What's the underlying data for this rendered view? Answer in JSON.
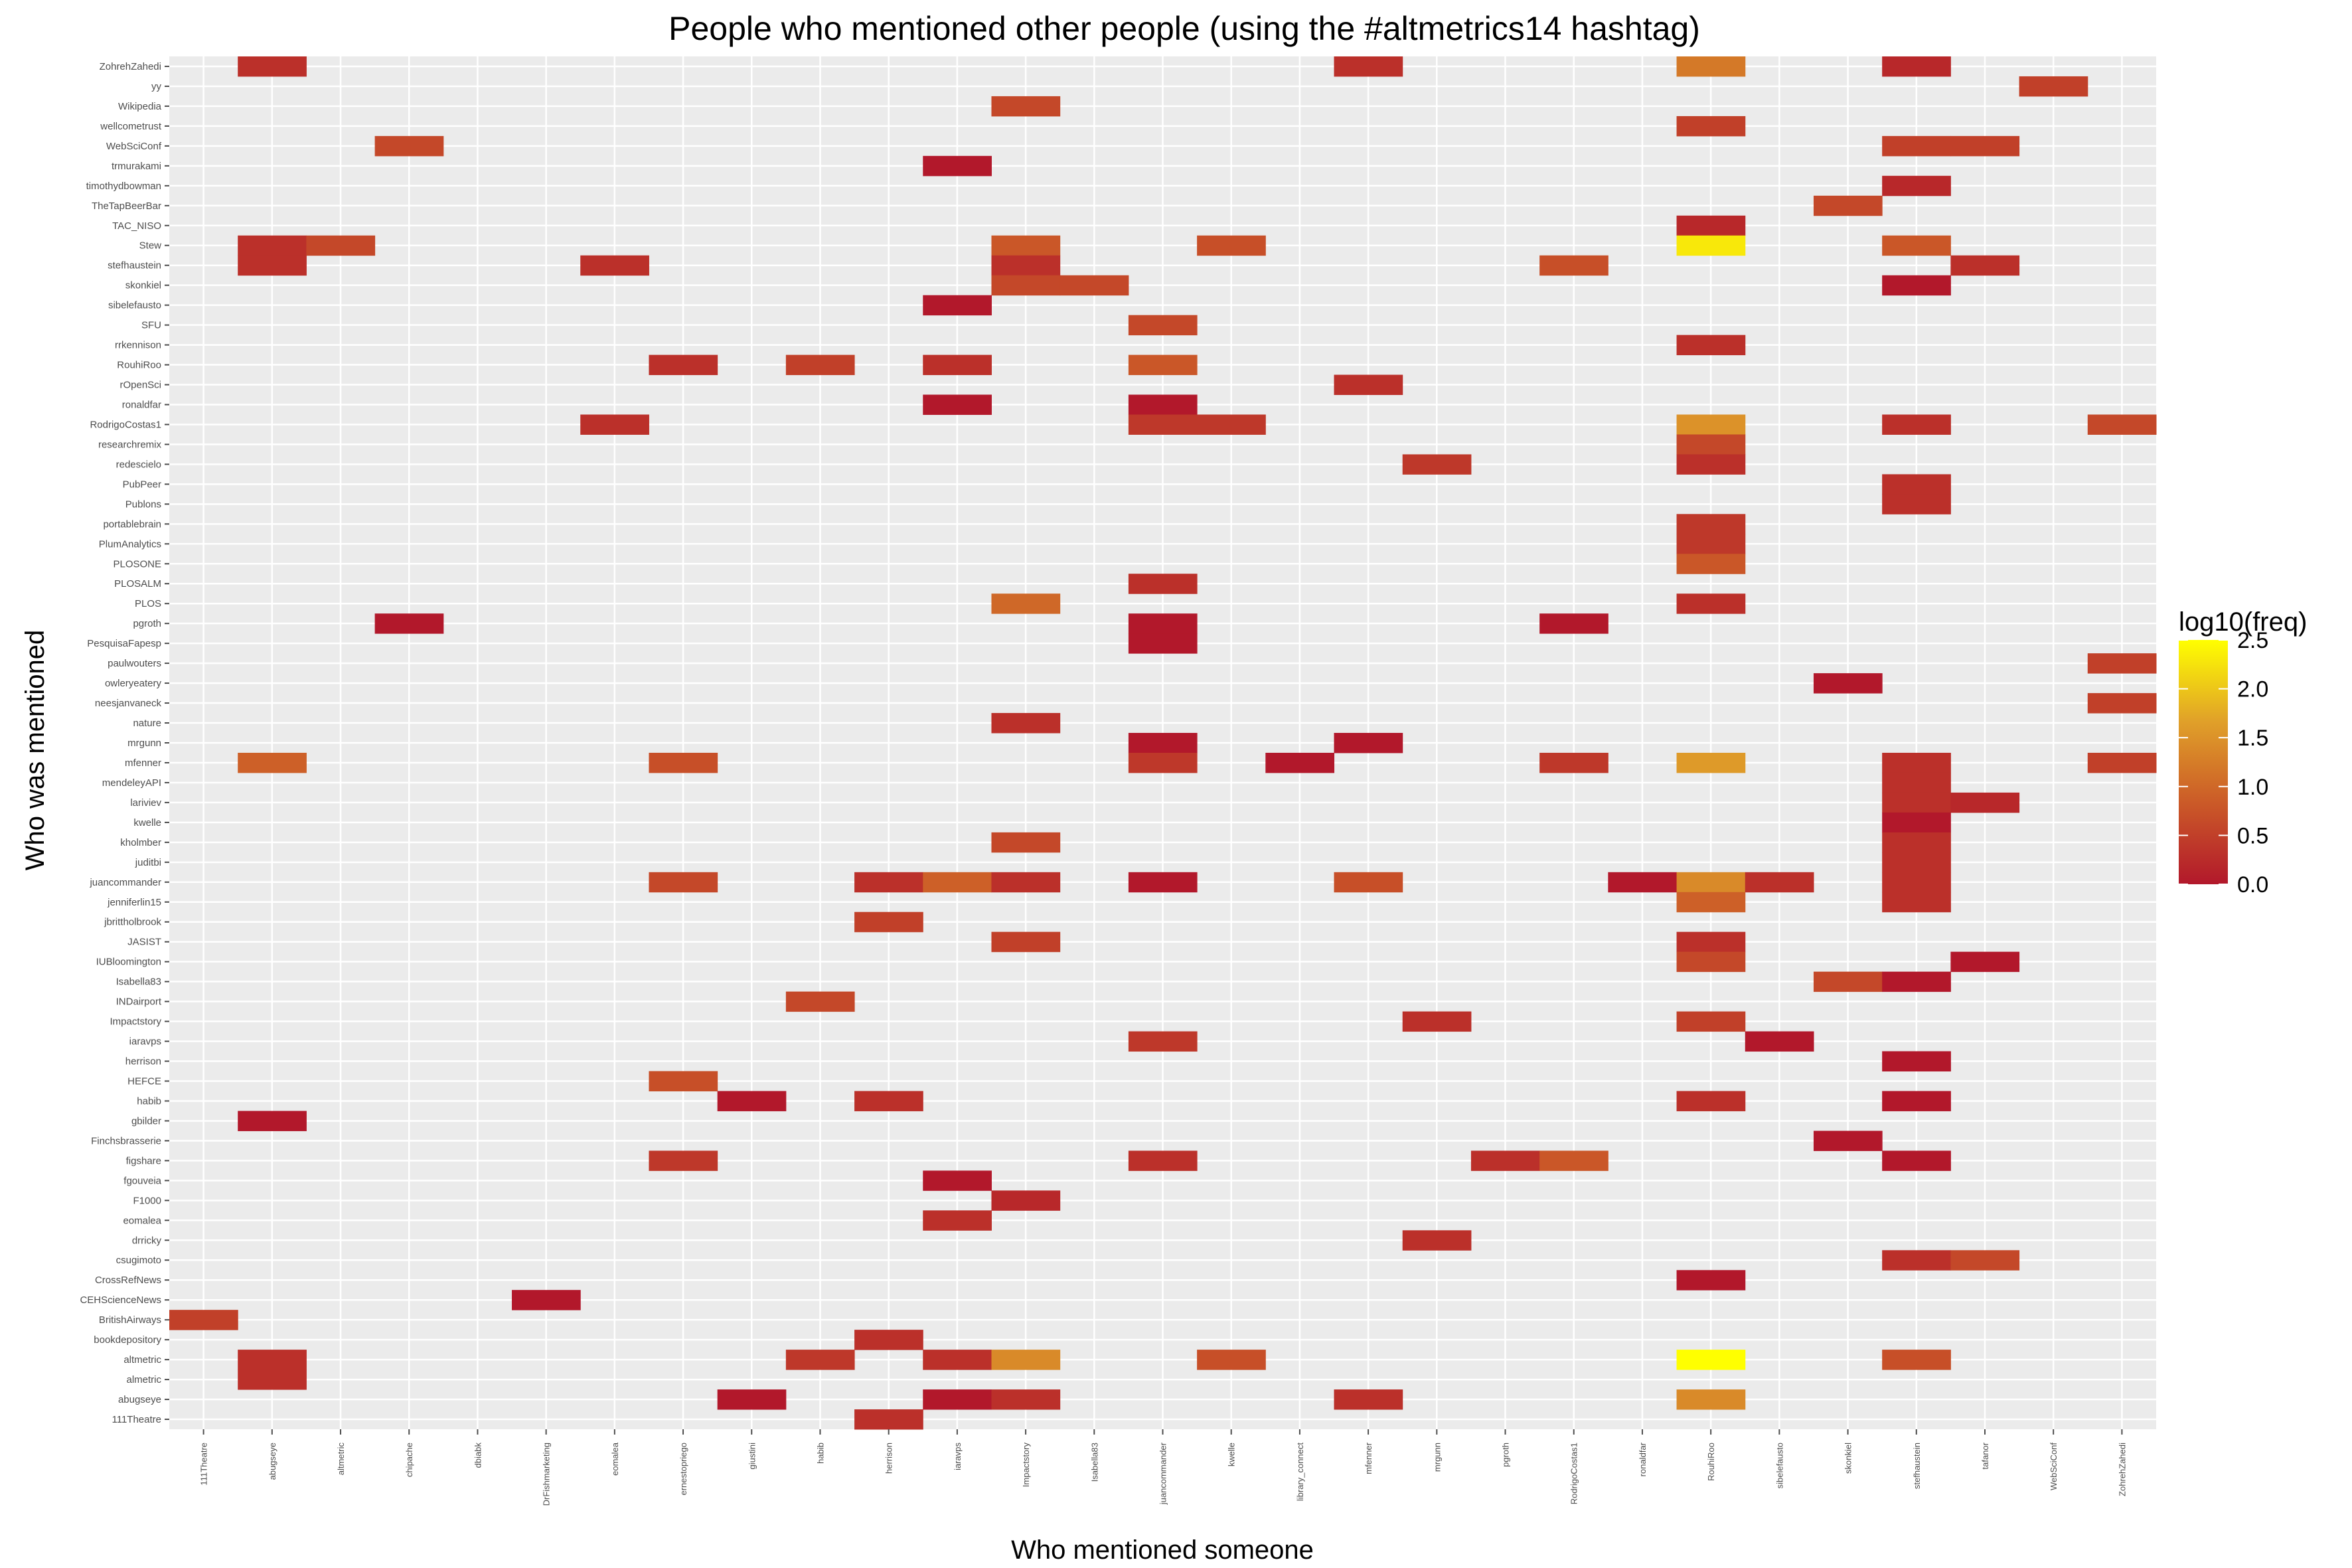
{
  "chart_data": {
    "type": "heatmap",
    "title": "People who mentioned other people (using the #altmetrics14 hashtag)",
    "xlabel": "Who mentioned someone",
    "ylabel": "Who was mentioned",
    "x_categories": [
      "111Theatre",
      "abugseye",
      "altmetric",
      "chipache",
      "dbiabk",
      "DrFishmarketing",
      "eomalea",
      "ernestopriego",
      "giustini",
      "habib",
      "herrison",
      "iaravps",
      "Impactstory",
      "Isabella83",
      "juancommander",
      "kwelle",
      "library_connect",
      "mfenner",
      "mrgunn",
      "pgroth",
      "RodrigoCostas1",
      "ronaldfar",
      "RouhiRoo",
      "sibelefausto",
      "skonkiel",
      "stefhaustein",
      "tafanor",
      "WebSciConf",
      "ZohrehZahedi"
    ],
    "y_categories": [
      "111Theatre",
      "abugseye",
      "almetric",
      "altmetric",
      "bookdepository",
      "BritishAirways",
      "CEHScienceNews",
      "CrossRefNews",
      "csugimoto",
      "drricky",
      "eomalea",
      "F1000",
      "fgouveia",
      "figshare",
      "Finchsbrasserie",
      "gbilder",
      "habib",
      "HEFCE",
      "herrison",
      "iaravps",
      "Impactstory",
      "INDairport",
      "Isabella83",
      "IUBloomington",
      "JASIST",
      "jbrittholbrook",
      "jenniferlin15",
      "juancommander",
      "juditbi",
      "kholmber",
      "kwelle",
      "lariviev",
      "mendeleyAPI",
      "mfenner",
      "mrgunn",
      "nature",
      "neesjanvaneck",
      "owleryeatery",
      "paulwouters",
      "PesquisaFapesp",
      "pgroth",
      "PLOS",
      "PLOSALM",
      "PLOSONE",
      "PlumAnalytics",
      "portablebrain",
      "Publons",
      "PubPeer",
      "redescielo",
      "researchremix",
      "RodrigoCostas1",
      "ronaldfar",
      "rOpenSci",
      "RouhiRoo",
      "rrkennison",
      "SFU",
      "sibelefausto",
      "skonkiel",
      "stefhaustein",
      "Stew",
      "TAC_NISO",
      "TheTapBeerBar",
      "timothydbowman",
      "trmurakami",
      "WebSciConf",
      "wellcometrust",
      "Wikipedia",
      "yy",
      "ZohrehZahedi"
    ],
    "cells": [
      {
        "x": "abugseye",
        "y": "ZohrehZahedi",
        "v": 0.3
      },
      {
        "x": "mfenner",
        "y": "ZohrehZahedi",
        "v": 0.3
      },
      {
        "x": "RouhiRoo",
        "y": "ZohrehZahedi",
        "v": 1.2
      },
      {
        "x": "stefhaustein",
        "y": "ZohrehZahedi",
        "v": 0.2
      },
      {
        "x": "WebSciConf",
        "y": "yy",
        "v": 0.5
      },
      {
        "x": "Impactstory",
        "y": "Wikipedia",
        "v": 0.6
      },
      {
        "x": "RouhiRoo",
        "y": "wellcometrust",
        "v": 0.5
      },
      {
        "x": "chipache",
        "y": "WebSciConf",
        "v": 0.6
      },
      {
        "x": "stefhaustein",
        "y": "WebSciConf",
        "v": 0.5
      },
      {
        "x": "tafanor",
        "y": "WebSciConf",
        "v": 0.5
      },
      {
        "x": "iaravps",
        "y": "trmurakami",
        "v": 0.0
      },
      {
        "x": "stefhaustein",
        "y": "timothydbowman",
        "v": 0.2
      },
      {
        "x": "skonkiel",
        "y": "TheTapBeerBar",
        "v": 0.6
      },
      {
        "x": "RouhiRoo",
        "y": "TAC_NISO",
        "v": 0.2
      },
      {
        "x": "abugseye",
        "y": "Stew",
        "v": 0.3
      },
      {
        "x": "altmetric",
        "y": "Stew",
        "v": 0.6
      },
      {
        "x": "Impactstory",
        "y": "Stew",
        "v": 0.8
      },
      {
        "x": "kwelle",
        "y": "Stew",
        "v": 0.7
      },
      {
        "x": "RouhiRoo",
        "y": "Stew",
        "v": 2.3
      },
      {
        "x": "stefhaustein",
        "y": "Stew",
        "v": 0.8
      },
      {
        "x": "abugseye",
        "y": "stefhaustein",
        "v": 0.3
      },
      {
        "x": "eomalea",
        "y": "stefhaustein",
        "v": 0.3
      },
      {
        "x": "Impactstory",
        "y": "stefhaustein",
        "v": 0.3
      },
      {
        "x": "RodrigoCostas1",
        "y": "stefhaustein",
        "v": 0.7
      },
      {
        "x": "tafanor",
        "y": "stefhaustein",
        "v": 0.3
      },
      {
        "x": "Impactstory",
        "y": "skonkiel",
        "v": 0.6
      },
      {
        "x": "Isabella83",
        "y": "skonkiel",
        "v": 0.6
      },
      {
        "x": "stefhaustein",
        "y": "skonkiel",
        "v": 0.0
      },
      {
        "x": "iaravps",
        "y": "sibelefausto",
        "v": 0.0
      },
      {
        "x": "juancommander",
        "y": "SFU",
        "v": 0.6
      },
      {
        "x": "RouhiRoo",
        "y": "rrkennison",
        "v": 0.3
      },
      {
        "x": "ernestopriego",
        "y": "RouhiRoo",
        "v": 0.3
      },
      {
        "x": "habib",
        "y": "RouhiRoo",
        "v": 0.5
      },
      {
        "x": "iaravps",
        "y": "RouhiRoo",
        "v": 0.3
      },
      {
        "x": "juancommander",
        "y": "RouhiRoo",
        "v": 0.8
      },
      {
        "x": "mfenner",
        "y": "rOpenSci",
        "v": 0.3
      },
      {
        "x": "iaravps",
        "y": "ronaldfar",
        "v": 0.0
      },
      {
        "x": "juancommander",
        "y": "ronaldfar",
        "v": 0.0
      },
      {
        "x": "eomalea",
        "y": "RodrigoCostas1",
        "v": 0.3
      },
      {
        "x": "juancommander",
        "y": "RodrigoCostas1",
        "v": 0.4
      },
      {
        "x": "kwelle",
        "y": "RodrigoCostas1",
        "v": 0.4
      },
      {
        "x": "RouhiRoo",
        "y": "RodrigoCostas1",
        "v": 1.5
      },
      {
        "x": "stefhaustein",
        "y": "RodrigoCostas1",
        "v": 0.3
      },
      {
        "x": "ZohrehZahedi",
        "y": "RodrigoCostas1",
        "v": 0.6
      },
      {
        "x": "RouhiRoo",
        "y": "researchremix",
        "v": 0.6
      },
      {
        "x": "mrgunn",
        "y": "redescielo",
        "v": 0.4
      },
      {
        "x": "RouhiRoo",
        "y": "redescielo",
        "v": 0.3
      },
      {
        "x": "stefhaustein",
        "y": "PubPeer",
        "v": 0.3
      },
      {
        "x": "stefhaustein",
        "y": "Publons",
        "v": 0.3
      },
      {
        "x": "RouhiRoo",
        "y": "portablebrain",
        "v": 0.4
      },
      {
        "x": "RouhiRoo",
        "y": "PlumAnalytics",
        "v": 0.4
      },
      {
        "x": "RouhiRoo",
        "y": "PLOSONE",
        "v": 0.8
      },
      {
        "x": "juancommander",
        "y": "PLOSALM",
        "v": 0.3
      },
      {
        "x": "Impactstory",
        "y": "PLOS",
        "v": 1.0
      },
      {
        "x": "RouhiRoo",
        "y": "PLOS",
        "v": 0.3
      },
      {
        "x": "chipache",
        "y": "pgroth",
        "v": 0.0
      },
      {
        "x": "juancommander",
        "y": "pgroth",
        "v": 0.0
      },
      {
        "x": "RodrigoCostas1",
        "y": "pgroth",
        "v": 0.0
      },
      {
        "x": "juancommander",
        "y": "PesquisaFapesp",
        "v": 0.0
      },
      {
        "x": "ZohrehZahedi",
        "y": "paulwouters",
        "v": 0.5
      },
      {
        "x": "skonkiel",
        "y": "owleryeatery",
        "v": 0.0
      },
      {
        "x": "ZohrehZahedi",
        "y": "neesjanvaneck",
        "v": 0.5
      },
      {
        "x": "Impactstory",
        "y": "nature",
        "v": 0.3
      },
      {
        "x": "juancommander",
        "y": "mrgunn",
        "v": 0.0
      },
      {
        "x": "mfenner",
        "y": "mrgunn",
        "v": 0.0
      },
      {
        "x": "abugseye",
        "y": "mfenner",
        "v": 0.9
      },
      {
        "x": "ernestopriego",
        "y": "mfenner",
        "v": 0.7
      },
      {
        "x": "juancommander",
        "y": "mfenner",
        "v": 0.4
      },
      {
        "x": "library_connect",
        "y": "mfenner",
        "v": 0.0
      },
      {
        "x": "RodrigoCostas1",
        "y": "mfenner",
        "v": 0.4
      },
      {
        "x": "RouhiRoo",
        "y": "mfenner",
        "v": 1.6
      },
      {
        "x": "stefhaustein",
        "y": "mfenner",
        "v": 0.3
      },
      {
        "x": "ZohrehZahedi",
        "y": "mfenner",
        "v": 0.5
      },
      {
        "x": "stefhaustein",
        "y": "mendeleyAPI",
        "v": 0.3
      },
      {
        "x": "stefhaustein",
        "y": "lariviev",
        "v": 0.3
      },
      {
        "x": "tafanor",
        "y": "lariviev",
        "v": 0.2
      },
      {
        "x": "stefhaustein",
        "y": "kwelle",
        "v": 0.0
      },
      {
        "x": "Impactstory",
        "y": "kholmber",
        "v": 0.6
      },
      {
        "x": "stefhaustein",
        "y": "kholmber",
        "v": 0.3
      },
      {
        "x": "stefhaustein",
        "y": "juditbi",
        "v": 0.3
      },
      {
        "x": "ernestopriego",
        "y": "juancommander",
        "v": 0.6
      },
      {
        "x": "herrison",
        "y": "juancommander",
        "v": 0.3
      },
      {
        "x": "iaravps",
        "y": "juancommander",
        "v": 0.9
      },
      {
        "x": "Impactstory",
        "y": "juancommander",
        "v": 0.3
      },
      {
        "x": "juancommander",
        "y": "juancommander",
        "v": 0.0
      },
      {
        "x": "mfenner",
        "y": "juancommander",
        "v": 0.7
      },
      {
        "x": "ronaldfar",
        "y": "juancommander",
        "v": 0.0
      },
      {
        "x": "RouhiRoo",
        "y": "juancommander",
        "v": 1.4
      },
      {
        "x": "sibelefausto",
        "y": "juancommander",
        "v": 0.3
      },
      {
        "x": "stefhaustein",
        "y": "juancommander",
        "v": 0.3
      },
      {
        "x": "RouhiRoo",
        "y": "jenniferlin15",
        "v": 0.9
      },
      {
        "x": "stefhaustein",
        "y": "jenniferlin15",
        "v": 0.3
      },
      {
        "x": "herrison",
        "y": "jbrittholbrook",
        "v": 0.5
      },
      {
        "x": "Impactstory",
        "y": "JASIST",
        "v": 0.5
      },
      {
        "x": "RouhiRoo",
        "y": "JASIST",
        "v": 0.3
      },
      {
        "x": "RouhiRoo",
        "y": "IUBloomington",
        "v": 0.6
      },
      {
        "x": "tafanor",
        "y": "IUBloomington",
        "v": 0.0
      },
      {
        "x": "skonkiel",
        "y": "Isabella83",
        "v": 0.6
      },
      {
        "x": "stefhaustein",
        "y": "Isabella83",
        "v": 0.0
      },
      {
        "x": "habib",
        "y": "INDairport",
        "v": 0.6
      },
      {
        "x": "mrgunn",
        "y": "Impactstory",
        "v": 0.3
      },
      {
        "x": "RouhiRoo",
        "y": "Impactstory",
        "v": 0.5
      },
      {
        "x": "juancommander",
        "y": "iaravps",
        "v": 0.4
      },
      {
        "x": "sibelefausto",
        "y": "iaravps",
        "v": 0.0
      },
      {
        "x": "stefhaustein",
        "y": "herrison",
        "v": 0.0
      },
      {
        "x": "ernestopriego",
        "y": "HEFCE",
        "v": 0.7
      },
      {
        "x": "giustini",
        "y": "habib",
        "v": 0.0
      },
      {
        "x": "herrison",
        "y": "habib",
        "v": 0.3
      },
      {
        "x": "RouhiRoo",
        "y": "habib",
        "v": 0.3
      },
      {
        "x": "stefhaustein",
        "y": "habib",
        "v": 0.0
      },
      {
        "x": "abugseye",
        "y": "gbilder",
        "v": 0.0
      },
      {
        "x": "skonkiel",
        "y": "Finchsbrasserie",
        "v": 0.0
      },
      {
        "x": "ernestopriego",
        "y": "figshare",
        "v": 0.4
      },
      {
        "x": "juancommander",
        "y": "figshare",
        "v": 0.3
      },
      {
        "x": "pgroth",
        "y": "figshare",
        "v": 0.3
      },
      {
        "x": "RodrigoCostas1",
        "y": "figshare",
        "v": 0.8
      },
      {
        "x": "stefhaustein",
        "y": "figshare",
        "v": 0.0
      },
      {
        "x": "iaravps",
        "y": "fgouveia",
        "v": 0.0
      },
      {
        "x": "Impactstory",
        "y": "F1000",
        "v": 0.2
      },
      {
        "x": "iaravps",
        "y": "eomalea",
        "v": 0.3
      },
      {
        "x": "mrgunn",
        "y": "drricky",
        "v": 0.3
      },
      {
        "x": "stefhaustein",
        "y": "csugimoto",
        "v": 0.3
      },
      {
        "x": "tafanor",
        "y": "csugimoto",
        "v": 0.6
      },
      {
        "x": "RouhiRoo",
        "y": "CrossRefNews",
        "v": 0.0
      },
      {
        "x": "DrFishmarketing",
        "y": "CEHScienceNews",
        "v": 0.0
      },
      {
        "x": "111Theatre",
        "y": "BritishAirways",
        "v": 0.5
      },
      {
        "x": "herrison",
        "y": "bookdepository",
        "v": 0.3
      },
      {
        "x": "abugseye",
        "y": "altmetric",
        "v": 0.3
      },
      {
        "x": "habib",
        "y": "altmetric",
        "v": 0.4
      },
      {
        "x": "iaravps",
        "y": "altmetric",
        "v": 0.3
      },
      {
        "x": "Impactstory",
        "y": "altmetric",
        "v": 1.4
      },
      {
        "x": "kwelle",
        "y": "altmetric",
        "v": 0.7
      },
      {
        "x": "RouhiRoo",
        "y": "altmetric",
        "v": 2.5
      },
      {
        "x": "stefhaustein",
        "y": "altmetric",
        "v": 0.7
      },
      {
        "x": "abugseye",
        "y": "almetric",
        "v": 0.3
      },
      {
        "x": "giustini",
        "y": "abugseye",
        "v": 0.0
      },
      {
        "x": "iaravps",
        "y": "abugseye",
        "v": 0.0
      },
      {
        "x": "Impactstory",
        "y": "abugseye",
        "v": 0.3
      },
      {
        "x": "mfenner",
        "y": "abugseye",
        "v": 0.3
      },
      {
        "x": "RouhiRoo",
        "y": "abugseye",
        "v": 1.4
      },
      {
        "x": "herrison",
        "y": "111Theatre",
        "v": 0.3
      }
    ],
    "legend": {
      "title": "log10(freq)",
      "ticks": [
        "2.5",
        "2.0",
        "1.5",
        "1.0",
        "0.5",
        "0.0"
      ],
      "range": [
        0,
        2.5
      ],
      "colors": [
        "#b2182b",
        "#cb5a28",
        "#e0a029",
        "#ffff00"
      ],
      "placement": "right"
    },
    "grid": true,
    "panel_color": "#ebebeb"
  }
}
